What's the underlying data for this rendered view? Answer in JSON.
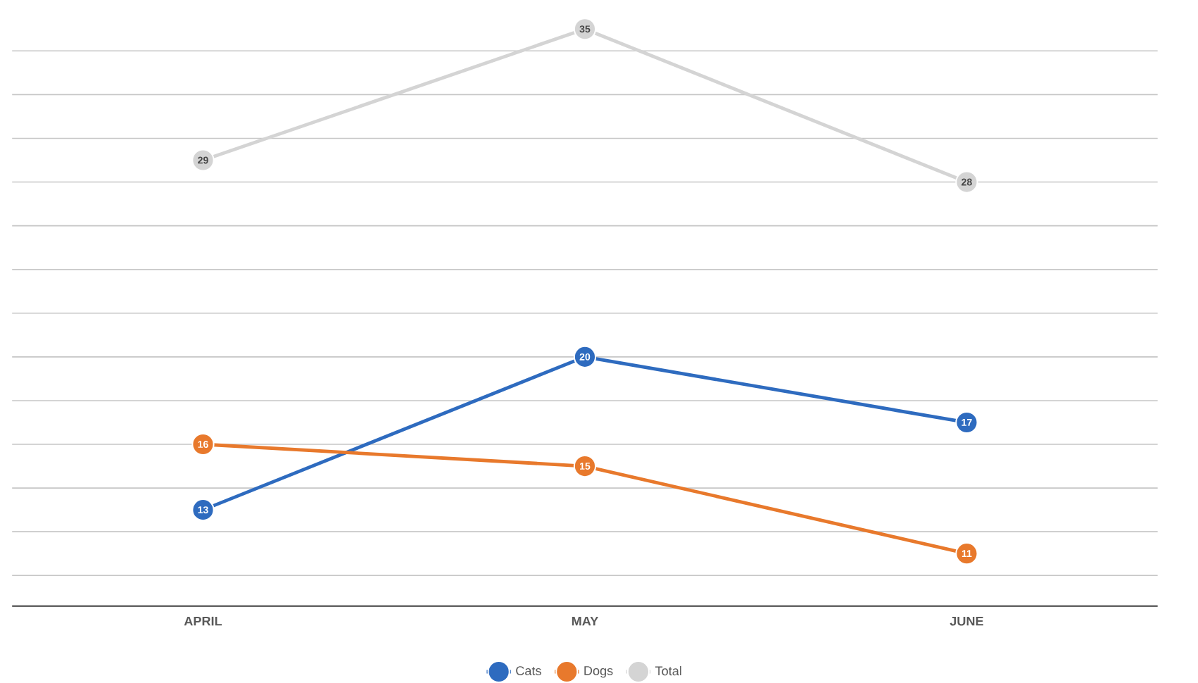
{
  "chart_data": {
    "type": "line",
    "categories": [
      "APRIL",
      "MAY",
      "JUNE"
    ],
    "series": [
      {
        "name": "Cats",
        "color": "#2e6bbf",
        "values": [
          13,
          20,
          17
        ]
      },
      {
        "name": "Dogs",
        "color": "#e8792c",
        "values": [
          16,
          15,
          11
        ]
      },
      {
        "name": "Total",
        "color": "#d4d4d4",
        "values": [
          29,
          35,
          28
        ]
      }
    ],
    "grid": "y",
    "legend": "bottom",
    "marker": "circle",
    "line_style": "solid",
    "data_labels": true,
    "tick_labels": "x"
  }
}
